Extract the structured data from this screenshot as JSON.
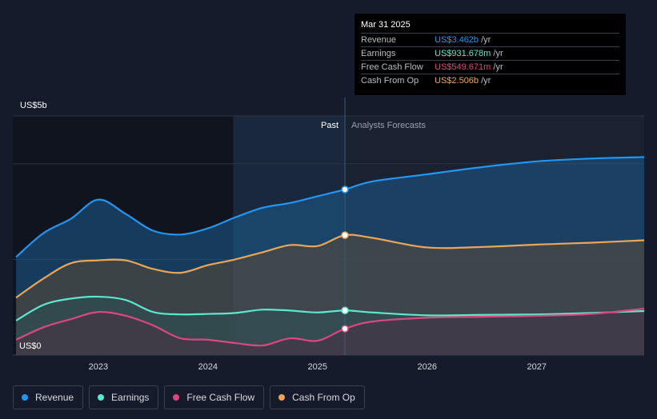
{
  "chart_data": {
    "type": "area",
    "y_axis": {
      "top_label": "US$5b",
      "bottom_label": "US$0",
      "ylim": [
        0,
        5.0
      ]
    },
    "x_ticks": [
      "2023",
      "2024",
      "2025",
      "2026",
      "2027"
    ],
    "x_tick_values": [
      2023.0,
      2024.0,
      2025.0,
      2026.0,
      2027.0
    ],
    "xlim": [
      2022.22,
      2027.98
    ],
    "divider_x": 2025.25,
    "past_shade_start_x": 2024.23,
    "past_label": "Past",
    "forecast_label": "Analysts Forecasts",
    "series": [
      {
        "name": "Revenue",
        "color": "#2196f3",
        "fill": "#1e5b8e",
        "points": [
          [
            2022.25,
            2.05
          ],
          [
            2022.5,
            2.55
          ],
          [
            2022.75,
            2.85
          ],
          [
            2023.0,
            3.25
          ],
          [
            2023.25,
            2.95
          ],
          [
            2023.5,
            2.6
          ],
          [
            2023.75,
            2.52
          ],
          [
            2024.0,
            2.65
          ],
          [
            2024.25,
            2.88
          ],
          [
            2024.5,
            3.08
          ],
          [
            2024.75,
            3.18
          ],
          [
            2025.0,
            3.32
          ],
          [
            2025.25,
            3.462
          ],
          [
            2025.5,
            3.63
          ],
          [
            2026.0,
            3.78
          ],
          [
            2026.5,
            3.93
          ],
          [
            2027.0,
            4.05
          ],
          [
            2027.5,
            4.11
          ],
          [
            2027.98,
            4.14
          ]
        ]
      },
      {
        "name": "Cash From Op",
        "color": "#e9a65a",
        "fill": "#5a4a35",
        "points": [
          [
            2022.25,
            1.2
          ],
          [
            2022.5,
            1.6
          ],
          [
            2022.75,
            1.92
          ],
          [
            2023.0,
            1.98
          ],
          [
            2023.25,
            1.98
          ],
          [
            2023.5,
            1.8
          ],
          [
            2023.75,
            1.72
          ],
          [
            2024.0,
            1.88
          ],
          [
            2024.25,
            2.0
          ],
          [
            2024.5,
            2.15
          ],
          [
            2024.75,
            2.3
          ],
          [
            2025.0,
            2.28
          ],
          [
            2025.25,
            2.506
          ],
          [
            2025.5,
            2.45
          ],
          [
            2026.0,
            2.25
          ],
          [
            2026.5,
            2.26
          ],
          [
            2027.0,
            2.31
          ],
          [
            2027.5,
            2.35
          ],
          [
            2027.98,
            2.4
          ]
        ]
      },
      {
        "name": "Earnings",
        "color": "#5ee6cf",
        "fill": "#2c4f55",
        "points": [
          [
            2022.25,
            0.72
          ],
          [
            2022.5,
            1.05
          ],
          [
            2022.75,
            1.18
          ],
          [
            2023.0,
            1.22
          ],
          [
            2023.25,
            1.15
          ],
          [
            2023.5,
            0.9
          ],
          [
            2023.75,
            0.85
          ],
          [
            2024.0,
            0.86
          ],
          [
            2024.25,
            0.88
          ],
          [
            2024.5,
            0.95
          ],
          [
            2024.75,
            0.93
          ],
          [
            2025.0,
            0.89
          ],
          [
            2025.25,
            0.932
          ],
          [
            2025.5,
            0.89
          ],
          [
            2026.0,
            0.83
          ],
          [
            2026.5,
            0.84
          ],
          [
            2027.0,
            0.85
          ],
          [
            2027.5,
            0.88
          ],
          [
            2027.98,
            0.92
          ]
        ]
      },
      {
        "name": "Free Cash Flow",
        "color": "#d9497f",
        "fill": "#4a2f42",
        "points": [
          [
            2022.25,
            0.32
          ],
          [
            2022.5,
            0.58
          ],
          [
            2022.75,
            0.75
          ],
          [
            2023.0,
            0.9
          ],
          [
            2023.25,
            0.82
          ],
          [
            2023.5,
            0.62
          ],
          [
            2023.75,
            0.35
          ],
          [
            2024.0,
            0.32
          ],
          [
            2024.25,
            0.25
          ],
          [
            2024.5,
            0.2
          ],
          [
            2024.75,
            0.35
          ],
          [
            2025.0,
            0.3
          ],
          [
            2025.25,
            0.55
          ],
          [
            2025.5,
            0.7
          ],
          [
            2026.0,
            0.78
          ],
          [
            2026.5,
            0.8
          ],
          [
            2027.0,
            0.82
          ],
          [
            2027.5,
            0.86
          ],
          [
            2027.98,
            0.97
          ]
        ]
      }
    ]
  },
  "tooltip": {
    "date": "Mar 31 2025",
    "rows": [
      {
        "label": "Revenue",
        "value": "US$3.462b",
        "unit": " /yr",
        "color": "#2196f3"
      },
      {
        "label": "Earnings",
        "value": "US$931.678m",
        "unit": " /yr",
        "color": "#5ee6cf"
      },
      {
        "label": "Free Cash Flow",
        "value": "US$549.671m",
        "unit": " /yr",
        "color": "#d9497f"
      },
      {
        "label": "Cash From Op",
        "value": "US$2.506b",
        "unit": " /yr",
        "color": "#e9a65a"
      }
    ]
  },
  "legend": [
    {
      "label": "Revenue",
      "color": "#2196f3"
    },
    {
      "label": "Earnings",
      "color": "#5ee6cf"
    },
    {
      "label": "Free Cash Flow",
      "color": "#d9497f"
    },
    {
      "label": "Cash From Op",
      "color": "#e9a65a"
    }
  ]
}
